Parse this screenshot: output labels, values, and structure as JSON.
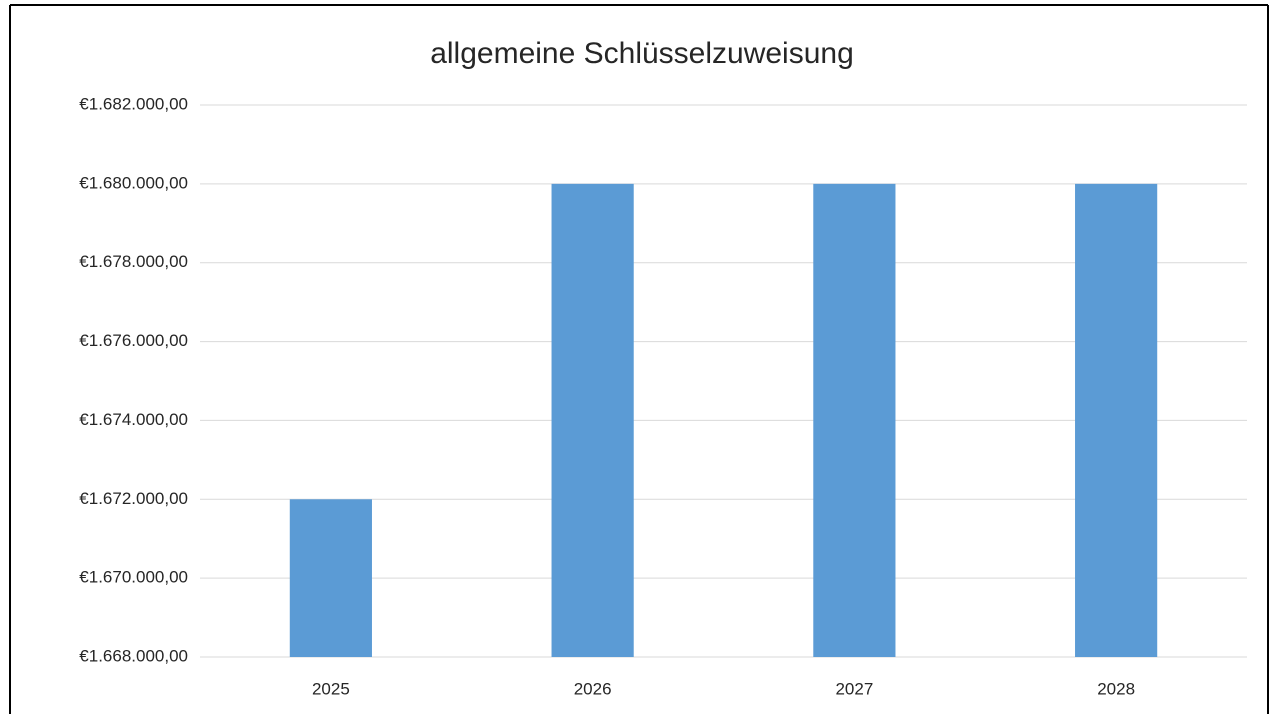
{
  "chart_data": {
    "type": "bar",
    "title": "allgemeine Schlüsselzuweisung",
    "categories": [
      "2025",
      "2026",
      "2027",
      "2028"
    ],
    "values": [
      1672000,
      1680000,
      1680000,
      1680000
    ],
    "color": "#5b9bd5",
    "ylim": [
      1668000,
      1682000
    ],
    "yticks": [
      {
        "value": 1668000,
        "label": "€1.668.000,00"
      },
      {
        "value": 1670000,
        "label": "€1.670.000,00"
      },
      {
        "value": 1672000,
        "label": "€1.672.000,00"
      },
      {
        "value": 1674000,
        "label": "€1.674.000,00"
      },
      {
        "value": 1676000,
        "label": "€1.676.000,00"
      },
      {
        "value": 1678000,
        "label": "€1.678.000,00"
      },
      {
        "value": 1680000,
        "label": "€1.680.000,00"
      },
      {
        "value": 1682000,
        "label": "€1.682.000,00"
      }
    ],
    "grid": true
  }
}
